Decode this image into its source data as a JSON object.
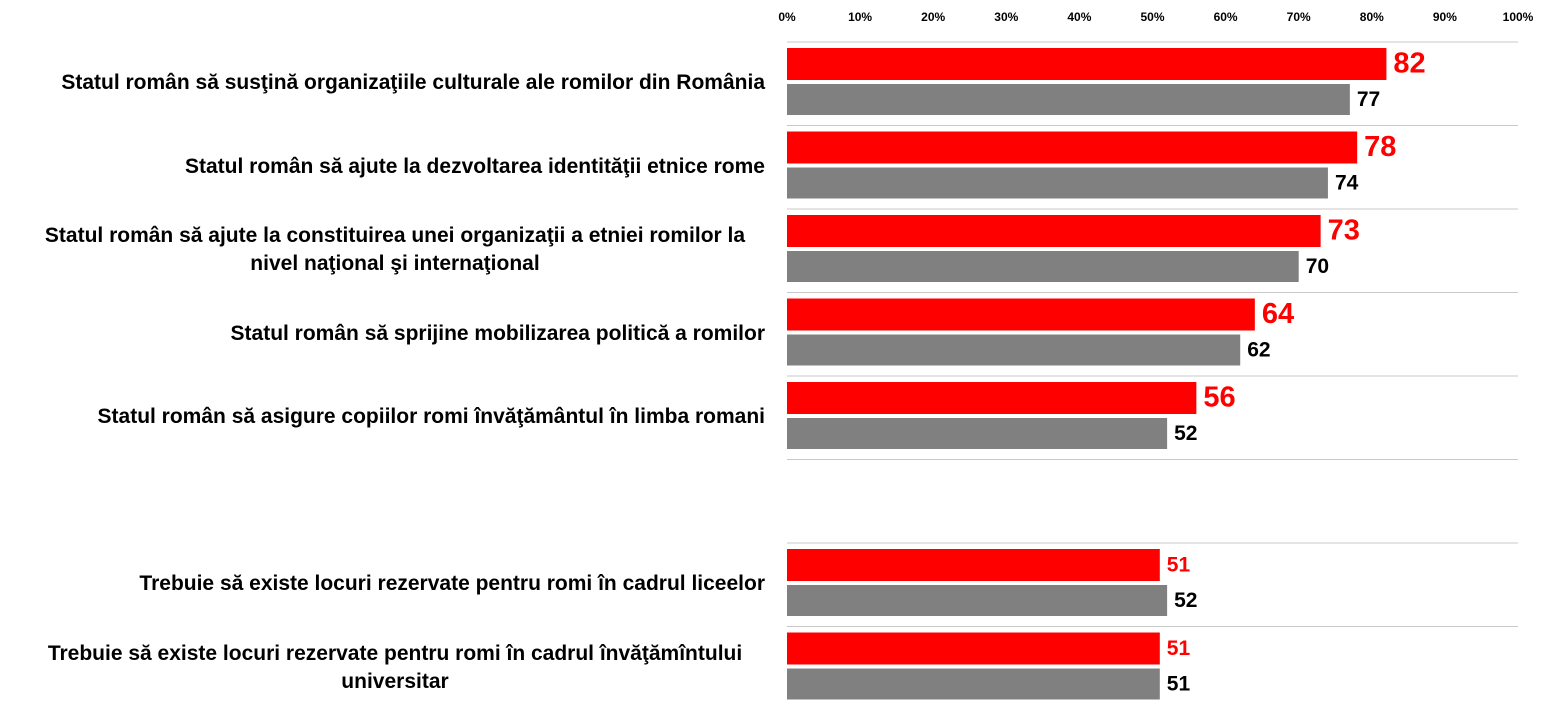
{
  "chart_data": {
    "type": "bar",
    "orientation": "horizontal",
    "categories": [
      "Statul român să susţină organizaţiile culturale ale romilor din România",
      "Statul român să ajute la dezvoltarea identităţii etnice rome",
      "Statul român să ajute la constituirea unei organizaţii a etniei romilor la nivel naţional şi internaţional",
      "Statul român să sprijine mobilizarea politică a romilor",
      "Statul român să asigure copiilor romi învăţământul în limba romani",
      null,
      "Trebuie să existe locuri rezervate pentru romi în cadrul liceelor",
      "Trebuie să existe locuri rezervate pentru romi în cadrul învăţămîntului universitar"
    ],
    "series": [
      {
        "color": "#ff0000",
        "values": [
          82,
          78,
          73,
          64,
          56,
          null,
          51,
          51
        ]
      },
      {
        "color": "#808080",
        "values": [
          77,
          74,
          70,
          62,
          52,
          null,
          52,
          51
        ]
      }
    ],
    "xlim": [
      0,
      100
    ],
    "xticks": [
      {
        "value": 0,
        "label": "0%"
      },
      {
        "value": 10,
        "label": "10%"
      },
      {
        "value": 20,
        "label": "20%"
      },
      {
        "value": 30,
        "label": "30%"
      },
      {
        "value": 40,
        "label": "40%"
      },
      {
        "value": 50,
        "label": "50%"
      },
      {
        "value": 60,
        "label": "60%"
      },
      {
        "value": 70,
        "label": "70%"
      },
      {
        "value": 80,
        "label": "80%"
      },
      {
        "value": 90,
        "label": "90%"
      },
      {
        "value": 100,
        "label": "100%"
      }
    ]
  }
}
